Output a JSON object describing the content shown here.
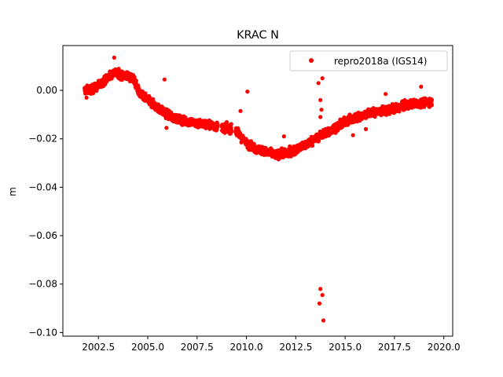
{
  "chart_data": {
    "type": "scatter",
    "title": "KRAC N",
    "xlabel": "",
    "ylabel": "m",
    "xlim": [
      2000.7,
      2020.45
    ],
    "ylim": [
      -0.1015,
      0.0185
    ],
    "x_ticks": [
      2002.5,
      2005.0,
      2007.5,
      2010.0,
      2012.5,
      2015.0,
      2017.5,
      2020.0
    ],
    "x_tick_labels": [
      "2002.5",
      "2005.0",
      "2007.5",
      "2010.0",
      "2012.5",
      "2015.0",
      "2017.5",
      "2020.0"
    ],
    "y_ticks": [
      -0.1,
      -0.08,
      -0.06,
      -0.04,
      -0.02,
      0.0
    ],
    "y_tick_labels": [
      "−0.10",
      "−0.08",
      "−0.06",
      "−0.04",
      "−0.02",
      "0.00"
    ],
    "grid": false,
    "legend_position": "top-right",
    "series": [
      {
        "name": "repro2018a (IGS14)",
        "color": "#ff0000",
        "marker": "circle",
        "trend": [
          [
            2001.8,
            0.0
          ],
          [
            2002.2,
            0.0005
          ],
          [
            2002.6,
            0.0025
          ],
          [
            2003.0,
            0.0055
          ],
          [
            2003.3,
            0.0075
          ],
          [
            2003.6,
            0.0065
          ],
          [
            2004.0,
            0.006
          ],
          [
            2004.3,
            0.0045
          ],
          [
            2004.6,
            -0.0015
          ],
          [
            2005.0,
            -0.004
          ],
          [
            2005.4,
            -0.0065
          ],
          [
            2005.8,
            -0.009
          ],
          [
            2006.2,
            -0.011
          ],
          [
            2006.8,
            -0.0125
          ],
          [
            2007.4,
            -0.0135
          ],
          [
            2008.0,
            -0.014
          ],
          [
            2008.5,
            -0.015
          ],
          [
            2009.0,
            -0.0155
          ],
          [
            2009.5,
            -0.017
          ],
          [
            2010.0,
            -0.022
          ],
          [
            2010.5,
            -0.024
          ],
          [
            2011.0,
            -0.0255
          ],
          [
            2011.5,
            -0.0265
          ],
          [
            2012.0,
            -0.026
          ],
          [
            2012.5,
            -0.0245
          ],
          [
            2013.0,
            -0.0225
          ],
          [
            2013.5,
            -0.02
          ],
          [
            2014.0,
            -0.0175
          ],
          [
            2014.5,
            -0.0155
          ],
          [
            2015.0,
            -0.013
          ],
          [
            2015.5,
            -0.0115
          ],
          [
            2016.0,
            -0.01
          ],
          [
            2016.5,
            -0.009
          ],
          [
            2017.0,
            -0.0085
          ],
          [
            2017.5,
            -0.0075
          ],
          [
            2018.0,
            -0.0065
          ],
          [
            2018.5,
            -0.0055
          ],
          [
            2019.0,
            -0.005
          ],
          [
            2019.4,
            -0.0045
          ]
        ],
        "gaps": [
          [
            2008.55,
            2008.75
          ],
          [
            2009.25,
            2009.45
          ],
          [
            2009.85,
            2009.95
          ]
        ],
        "outliers": [
          [
            2001.9,
            -0.003
          ],
          [
            2003.3,
            0.0135
          ],
          [
            2005.85,
            0.0045
          ],
          [
            2005.95,
            -0.0155
          ],
          [
            2010.05,
            -0.0005
          ],
          [
            2009.7,
            -0.0085
          ],
          [
            2011.9,
            -0.019
          ],
          [
            2013.65,
            0.003
          ],
          [
            2013.85,
            0.005
          ],
          [
            2013.75,
            -0.004
          ],
          [
            2013.8,
            -0.008
          ],
          [
            2013.75,
            -0.011
          ],
          [
            2013.75,
            -0.082
          ],
          [
            2013.7,
            -0.088
          ],
          [
            2013.85,
            -0.0845
          ],
          [
            2013.9,
            -0.095
          ],
          [
            2017.05,
            -0.0015
          ],
          [
            2018.85,
            0.0015
          ],
          [
            2015.4,
            -0.0185
          ],
          [
            2016.05,
            -0.016
          ]
        ]
      }
    ]
  }
}
